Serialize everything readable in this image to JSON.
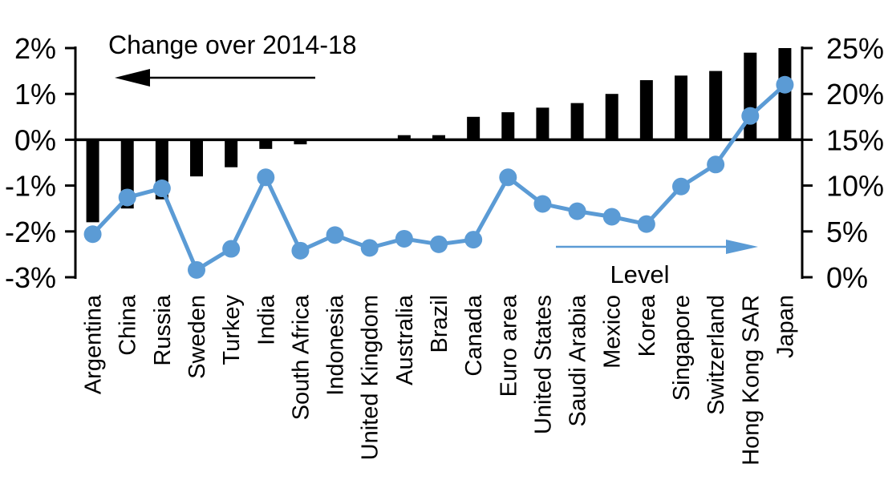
{
  "chart_data": {
    "type": "bar",
    "subtype": "combo-bar-line-dual-axis",
    "categories": [
      "Argentina",
      "China",
      "Russia",
      "Sweden",
      "Turkey",
      "India",
      "South Africa",
      "Indonesia",
      "United Kingdom",
      "Australia",
      "Brazil",
      "Canada",
      "Euro area",
      "United States",
      "Saudi Arabia",
      "Mexico",
      "Korea",
      "Singapore",
      "Switzerland",
      "Hong Kong SAR",
      "Japan"
    ],
    "series": [
      {
        "name": "Change over 2014-18",
        "type": "bar",
        "axis": "left",
        "color": "#000000",
        "values": [
          -1.8,
          -1.5,
          -1.3,
          -0.8,
          -0.6,
          -0.2,
          -0.1,
          0.0,
          0.0,
          0.1,
          0.1,
          0.5,
          0.6,
          0.7,
          0.8,
          1.0,
          1.3,
          1.4,
          1.5,
          1.9,
          2.0
        ]
      },
      {
        "name": "Level",
        "type": "line",
        "axis": "right",
        "color": "#5B9BD5",
        "values": [
          4.7,
          8.7,
          9.7,
          0.8,
          3.1,
          10.9,
          2.9,
          4.6,
          3.2,
          4.2,
          3.6,
          4.1,
          10.9,
          8.0,
          7.2,
          6.6,
          5.8,
          9.9,
          12.3,
          17.6,
          21.0
        ]
      }
    ],
    "left_axis": {
      "min": -3,
      "max": 2,
      "tick_values": [
        2,
        1,
        0,
        -1,
        -2,
        -3
      ],
      "tick_labels": [
        "2%",
        "1%",
        "0%",
        "-1%",
        "-2%",
        "-3%"
      ]
    },
    "right_axis": {
      "min": 0,
      "max": 25,
      "tick_values": [
        25,
        20,
        15,
        10,
        5,
        0
      ],
      "tick_labels": [
        "25%",
        "20%",
        "15%",
        "10%",
        "5%",
        "0%"
      ]
    },
    "annotations": {
      "bar_series_label": "Change over 2014-18",
      "line_series_label": "Level",
      "left_arrow_direction": "left",
      "right_arrow_direction": "right"
    },
    "colors": {
      "bar": "#000000",
      "line": "#5B9BD5",
      "text": "#000000",
      "background": "#FFFFFF"
    },
    "grid": "off",
    "legend_position": "in-plot annotations with arrows"
  }
}
